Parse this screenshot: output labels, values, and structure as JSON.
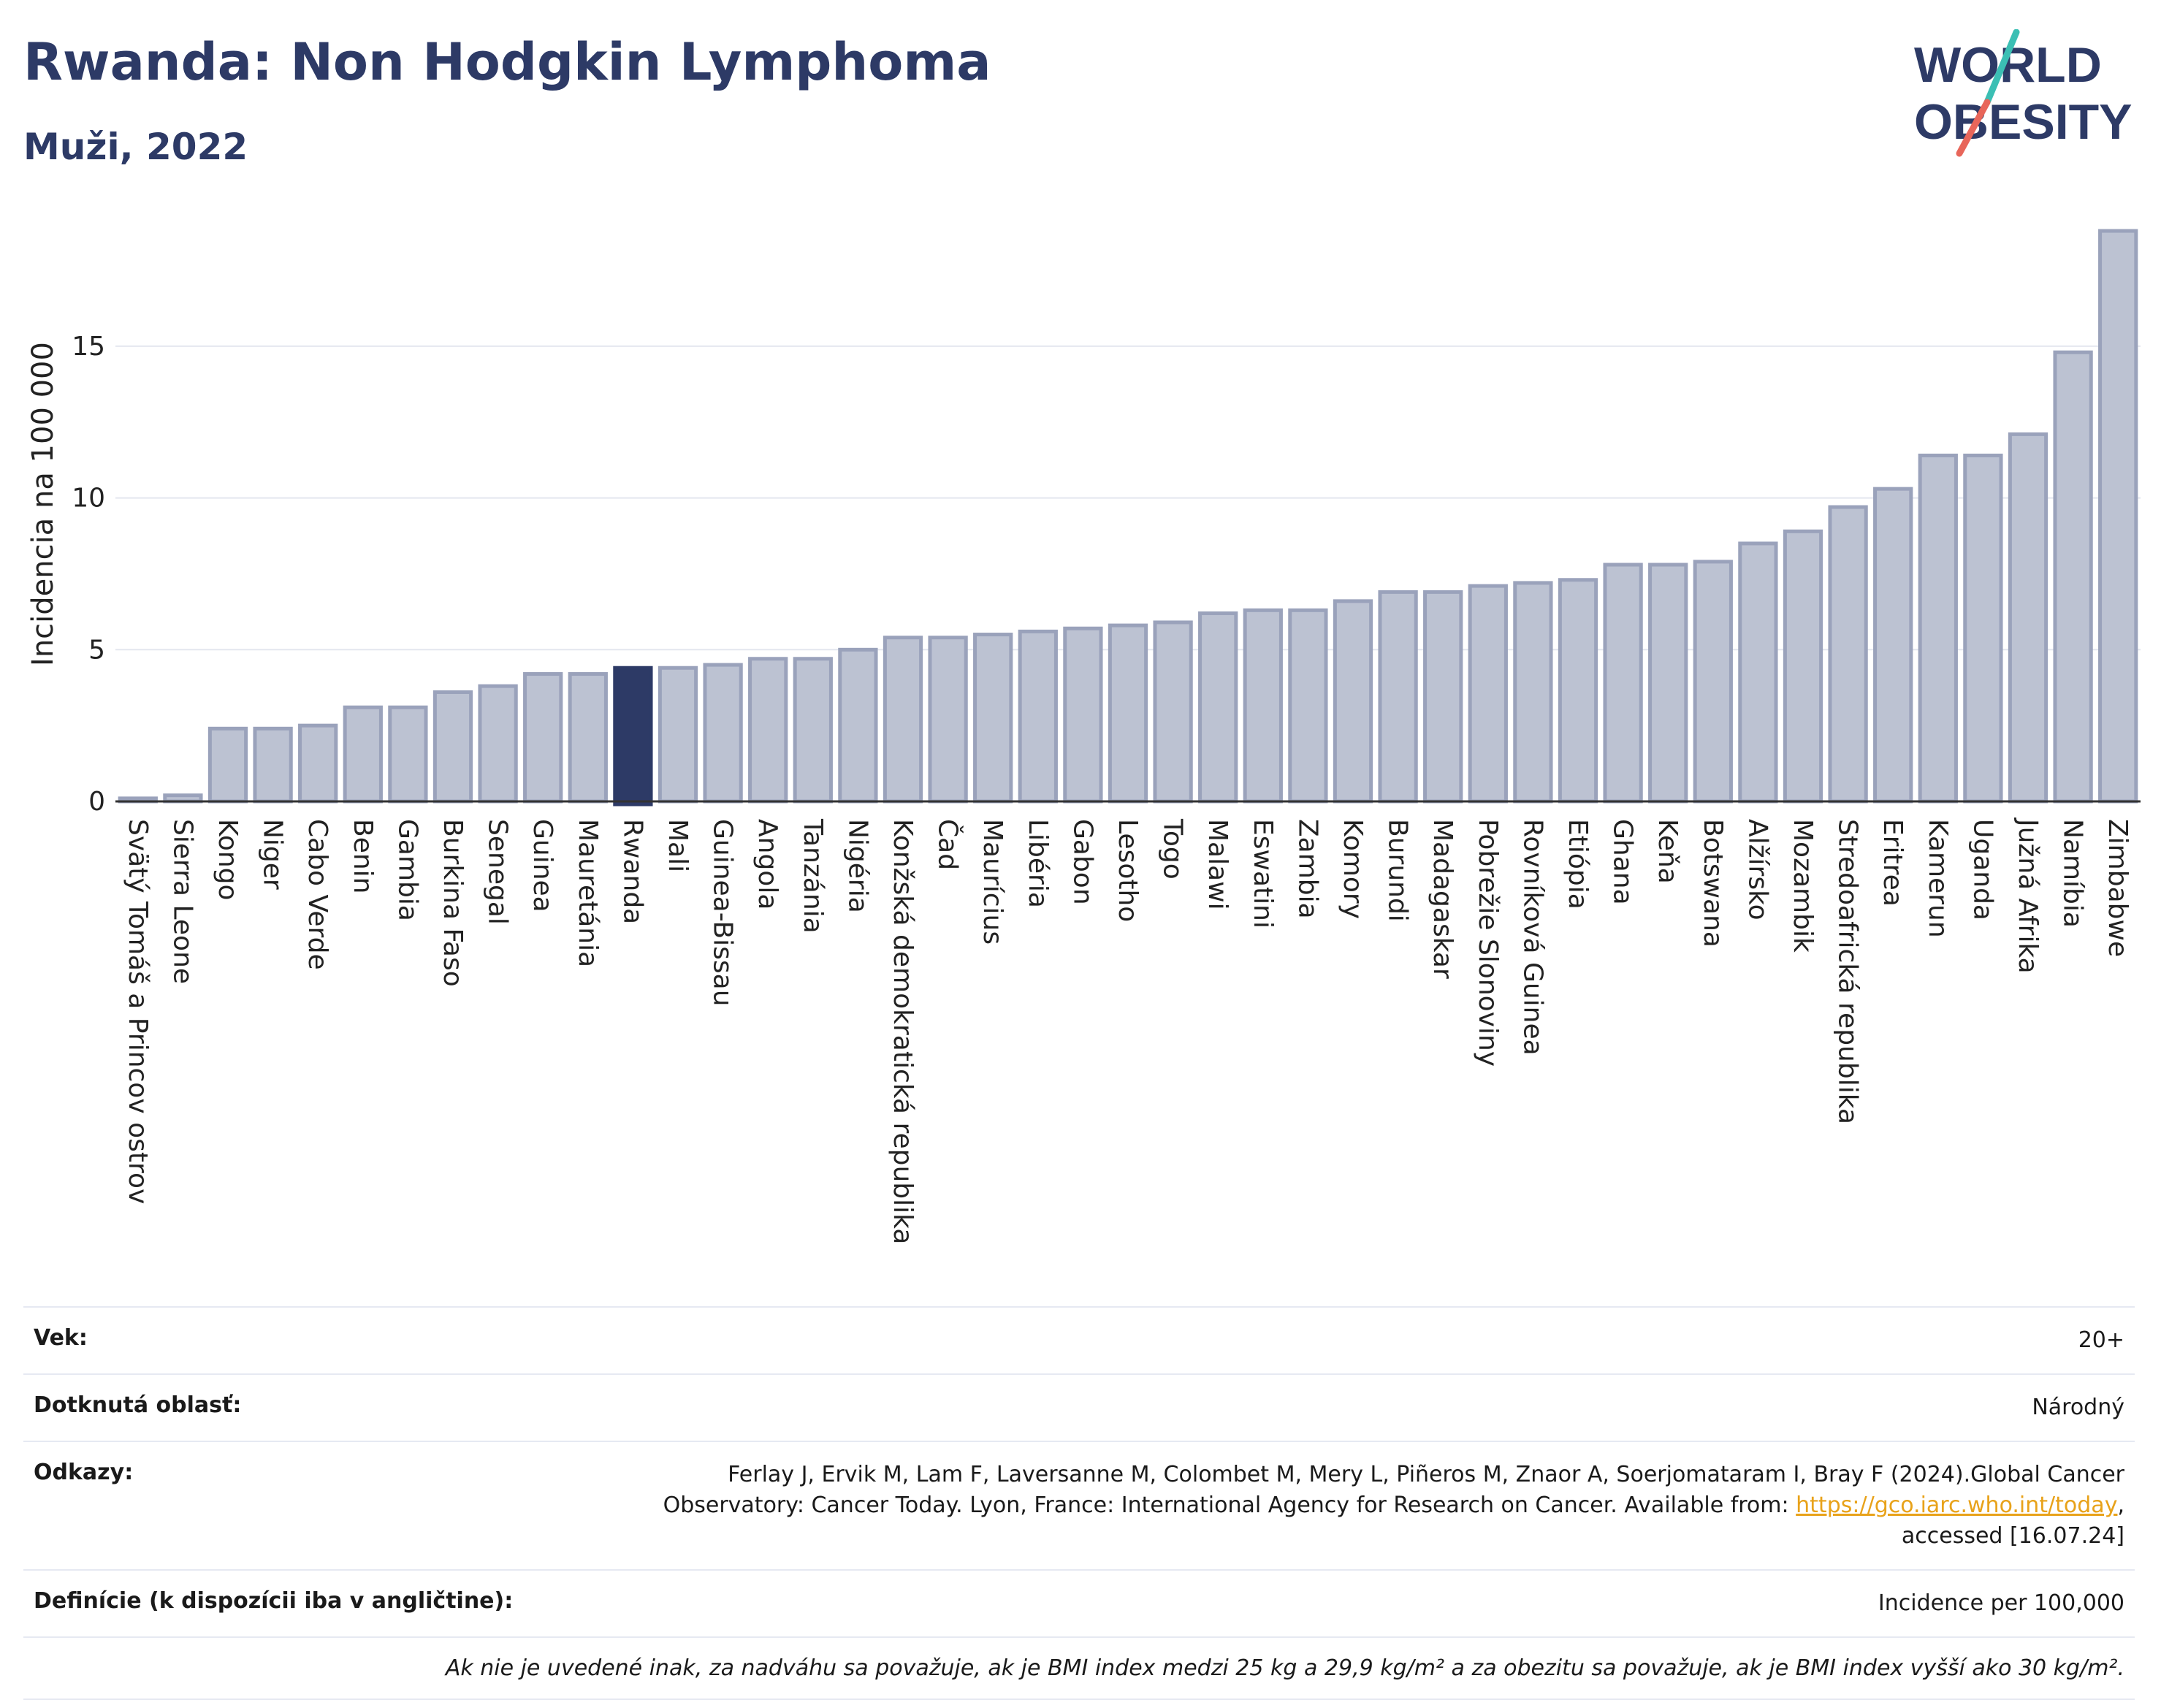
{
  "header": {
    "title": "Rwanda: Non Hodgkin Lymphoma",
    "subtitle": "Muži, 2022"
  },
  "logo": {
    "line1": "WORLD",
    "line2": "OBESITY",
    "colors": {
      "text": "#2d3a66",
      "slash_top": "#3bbfb4",
      "slash_bottom": "#e8665a"
    }
  },
  "colors": {
    "bar": "#bcc2d2",
    "bar_border": "#9aa2bb",
    "highlight": "#2d3a66",
    "grid": "#e4e7ef",
    "axis": "#333333"
  },
  "chart_data": {
    "type": "bar",
    "title": "Rwanda: Non Hodgkin Lymphoma",
    "subtitle": "Muži, 2022",
    "ylabel": "Incidencia na 100 000",
    "xlabel": "",
    "ylim": [
      0,
      19.5
    ],
    "yticks": [
      0,
      5,
      10,
      15
    ],
    "grid": true,
    "highlight": "Rwanda",
    "categories": [
      "Svätý Tomáš a Princov ostrov",
      "Sierra Leone",
      "Kongo",
      "Niger",
      "Cabo Verde",
      "Benin",
      "Gambia",
      "Burkina Faso",
      "Senegal",
      "Guinea",
      "Mauretánia",
      "Rwanda",
      "Mali",
      "Guinea-Bissau",
      "Angola",
      "Tanzánia",
      "Nigéria",
      "Konžská demokratická republika",
      "Čad",
      "Maurícius",
      "Libéria",
      "Gabon",
      "Lesotho",
      "Togo",
      "Malawi",
      "Eswatini",
      "Zambia",
      "Komory",
      "Burundi",
      "Madagaskar",
      "Pobrežie Slonoviny",
      "Rovníková Guinea",
      "Etiópia",
      "Ghana",
      "Keňa",
      "Botswana",
      "Alžírsko",
      "Mozambik",
      "Stredoafrická republika",
      "Eritrea",
      "Kamerun",
      "Uganda",
      "Južná Afrika",
      "Namíbia",
      "Zimbabwe"
    ],
    "values": [
      0.1,
      0.2,
      2.4,
      2.4,
      2.5,
      3.1,
      3.1,
      3.6,
      3.8,
      4.2,
      4.2,
      4.4,
      4.4,
      4.5,
      4.7,
      4.7,
      5.0,
      5.4,
      5.4,
      5.5,
      5.6,
      5.7,
      5.8,
      5.9,
      6.2,
      6.3,
      6.3,
      6.6,
      6.9,
      6.9,
      7.1,
      7.2,
      7.3,
      7.8,
      7.8,
      7.9,
      8.5,
      8.9,
      9.7,
      10.3,
      11.4,
      11.4,
      12.1,
      14.8,
      18.8
    ]
  },
  "info": {
    "age_label": "Vek:",
    "age_value": "20+",
    "area_label": "Dotknutá oblasť:",
    "area_value": "Národný",
    "refs_label": "Odkazy:",
    "refs_line1": "Ferlay J, Ervik M, Lam F, Laversanne M, Colombet M, Mery L, Piñeros M, Znaor A, Soerjomataram I, Bray F (2024).Global Cancer",
    "refs_line2_pre": "Observatory: Cancer Today. Lyon, France: International Agency for Research on Cancer. Available from: ",
    "refs_link": "https://gco.iarc.who.int/today",
    "refs_line2_post": ",",
    "refs_line3": "accessed [16.07.24]",
    "def_label": "Definície (k dispozícii iba v angličtine):",
    "def_value": "Incidence per 100,000",
    "note": "Ak nie je uvedené inak, za nadváhu sa považuje, ak je BMI index medzi 25 kg a 29,9 kg/m² a za obezitu sa považuje, ak je BMI index vyšší ako 30 kg/m²."
  }
}
